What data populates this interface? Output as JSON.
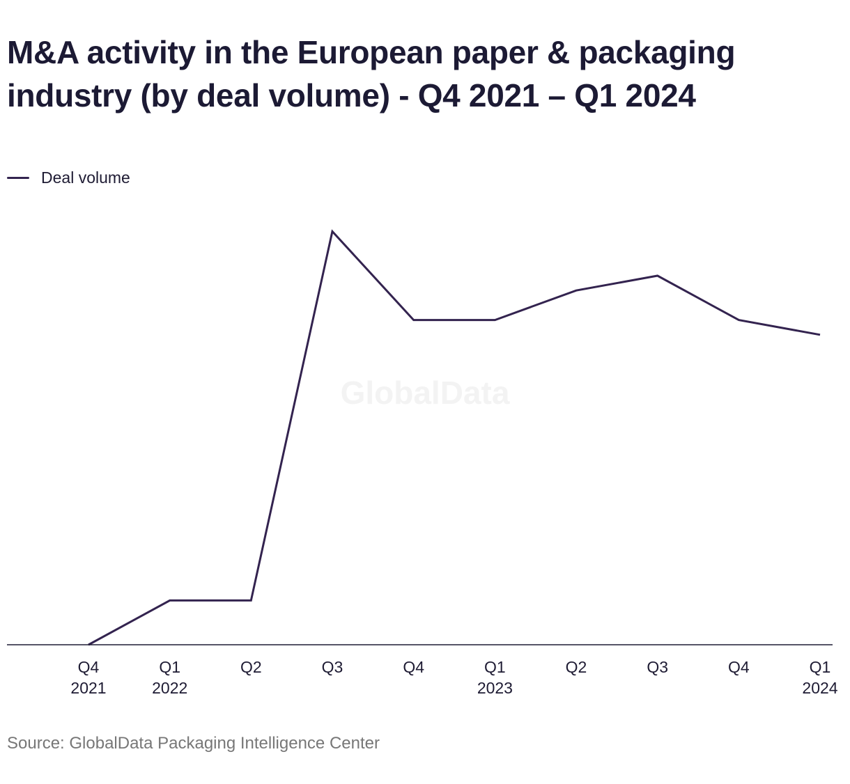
{
  "chart_data": {
    "type": "line",
    "title": "M&A activity in the European paper & packaging industry (by deal volume) - Q4 2021 – Q1 2024",
    "xlabel": "",
    "ylabel": "",
    "categories": [
      [
        "Q4",
        "2021"
      ],
      [
        "Q1",
        "2022"
      ],
      [
        "Q2",
        ""
      ],
      [
        "Q3",
        ""
      ],
      [
        "Q4",
        ""
      ],
      [
        "Q1",
        "2023"
      ],
      [
        "Q2",
        ""
      ],
      [
        "Q3",
        ""
      ],
      [
        "Q4",
        ""
      ],
      [
        "Q1",
        "2024"
      ]
    ],
    "series": [
      {
        "name": "Deal volume",
        "color": "#33234f",
        "values": [
          0,
          3,
          3,
          28,
          22,
          22,
          24,
          25,
          22,
          21
        ]
      }
    ],
    "ylim": [
      0,
      30
    ],
    "grid": false,
    "legend": "top-left"
  },
  "watermark": "GlobalData",
  "source": "Source: GlobalData Packaging Intelligence Center"
}
